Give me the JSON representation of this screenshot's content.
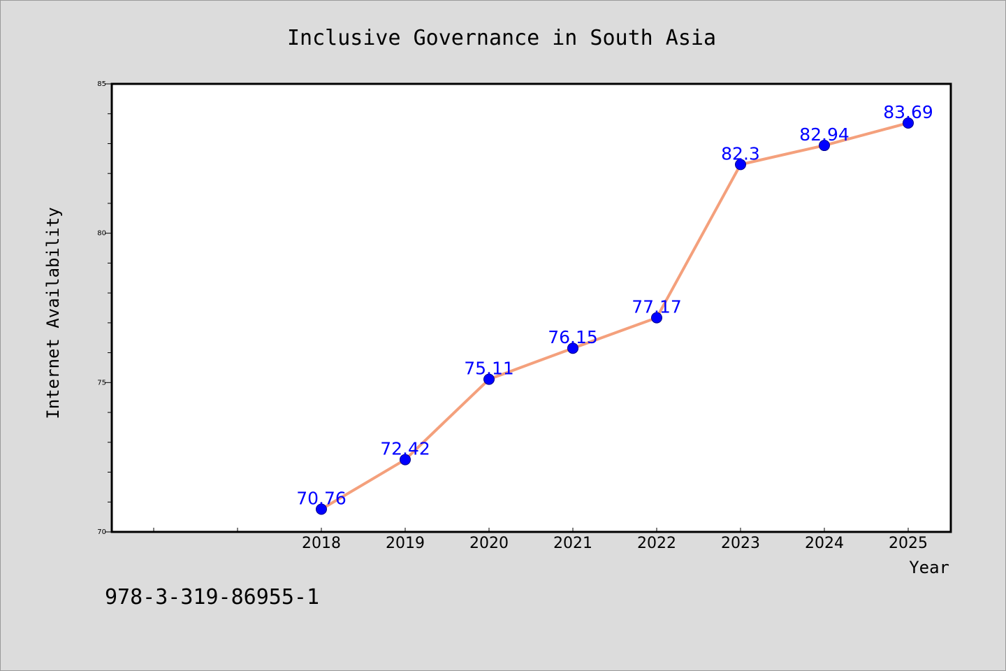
{
  "colors": {
    "background": "#dcdcdc",
    "plot_background": "#ffffff",
    "line": "#f4a07c",
    "marker": "#0000ff",
    "label": "#0000ff"
  },
  "isbn": "978-3-319-86955-1",
  "chart_data": {
    "type": "line",
    "title": "Inclusive Governance in South Asia",
    "xlabel": "Year",
    "ylabel": "Internet Availability",
    "x": [
      "2018",
      "2019",
      "2020",
      "2021",
      "2022",
      "2023",
      "2024",
      "2025"
    ],
    "series": [
      {
        "values": [
          70.76,
          72.42,
          75.11,
          76.15,
          77.17,
          82.3,
          82.94,
          83.69
        ]
      }
    ],
    "data_labels": [
      "70.76",
      "72.42",
      "75.11",
      "76.15",
      "77.17",
      "82.3",
      "82.94",
      "83.69"
    ],
    "ylim": [
      70,
      85
    ],
    "yticks": [
      70,
      75,
      80,
      85
    ],
    "grid": false,
    "legend": "none"
  }
}
